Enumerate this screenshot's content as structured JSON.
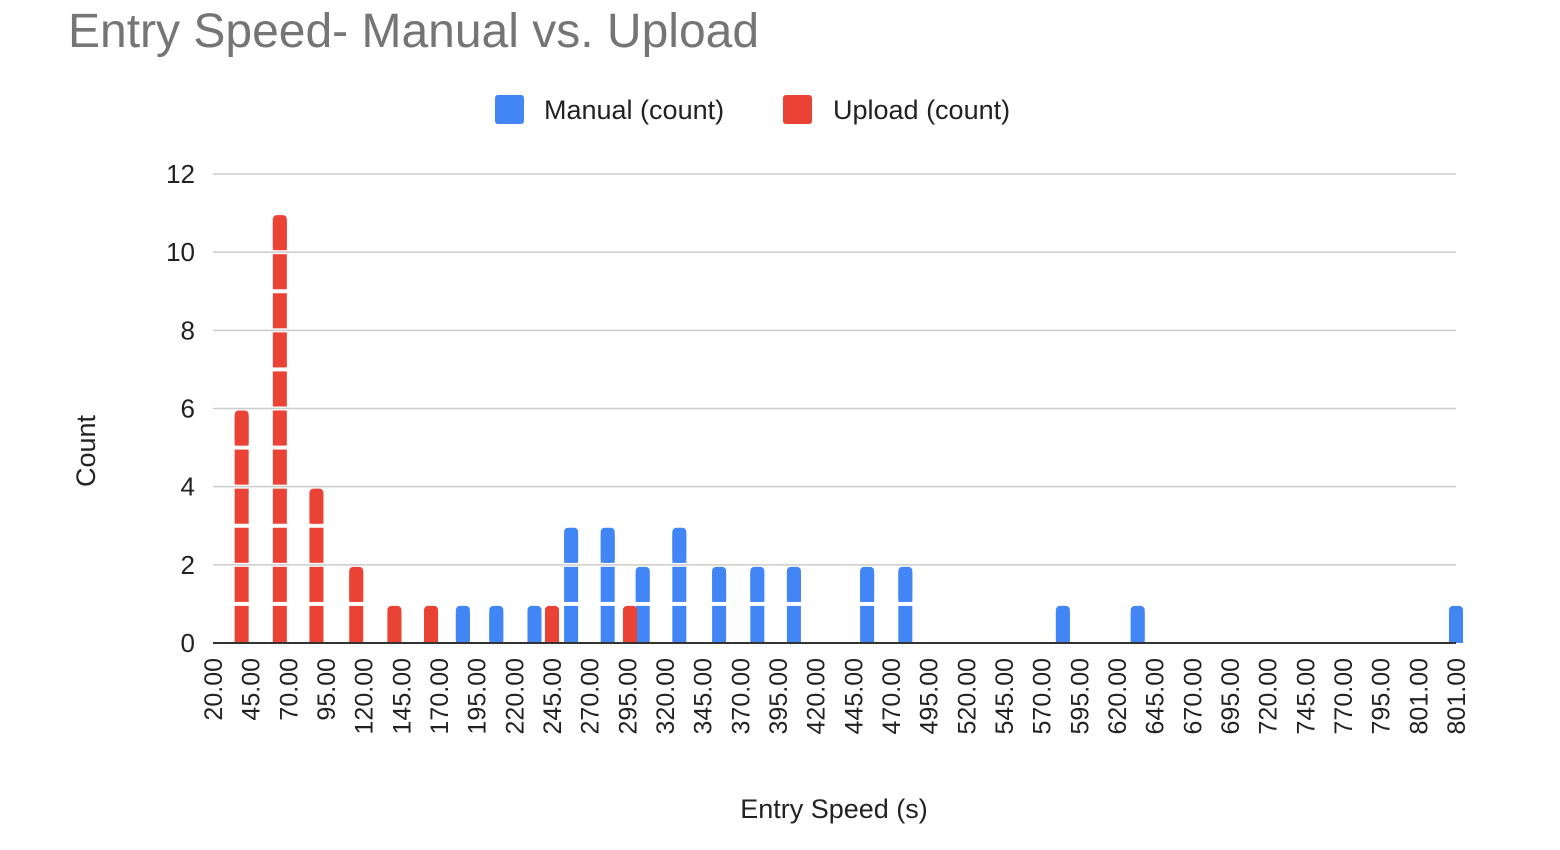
{
  "chart_data": {
    "type": "bar",
    "title": "Entry Speed- Manual vs. Upload",
    "xlabel": "Entry Speed (s)",
    "ylabel": "Count",
    "ylim": [
      0,
      12
    ],
    "yticks": [
      "0",
      "2",
      "4",
      "6",
      "8",
      "10",
      "12"
    ],
    "grid": true,
    "legend_position": "top",
    "categories": [
      "20.00",
      "45.00",
      "70.00",
      "95.00",
      "120.00",
      "145.00",
      "170.00",
      "195.00",
      "220.00",
      "245.00",
      "270.00",
      "295.00",
      "320.00",
      "345.00",
      "370.00",
      "395.00",
      "420.00",
      "445.00",
      "470.00",
      "495.00",
      "520.00",
      "545.00",
      "570.00",
      "595.00",
      "620.00",
      "645.00",
      "670.00",
      "695.00",
      "720.00",
      "745.00",
      "770.00",
      "795.00",
      "801.00",
      "801.00"
    ],
    "series": [
      {
        "name": "Manual (count)",
        "color": "#4285f4",
        "points": [
          {
            "x": 177,
            "y": 1
          },
          {
            "x": 198,
            "y": 1
          },
          {
            "x": 222,
            "y": 1
          },
          {
            "x": 245,
            "y": 3
          },
          {
            "x": 268,
            "y": 3
          },
          {
            "x": 290,
            "y": 2
          },
          {
            "x": 313,
            "y": 3
          },
          {
            "x": 338,
            "y": 2
          },
          {
            "x": 362,
            "y": 2
          },
          {
            "x": 385,
            "y": 2
          },
          {
            "x": 431,
            "y": 2
          },
          {
            "x": 455,
            "y": 2
          },
          {
            "x": 554,
            "y": 1
          },
          {
            "x": 601,
            "y": 1
          },
          {
            "x": 801,
            "y": 1
          }
        ]
      },
      {
        "name": "Upload (count)",
        "color": "#ea4335",
        "points": [
          {
            "x": 38,
            "y": 6
          },
          {
            "x": 62,
            "y": 11
          },
          {
            "x": 85,
            "y": 4
          },
          {
            "x": 110,
            "y": 2
          },
          {
            "x": 134,
            "y": 1
          },
          {
            "x": 157,
            "y": 1
          },
          {
            "x": 233,
            "y": 1
          },
          {
            "x": 282,
            "y": 1
          }
        ]
      }
    ]
  }
}
